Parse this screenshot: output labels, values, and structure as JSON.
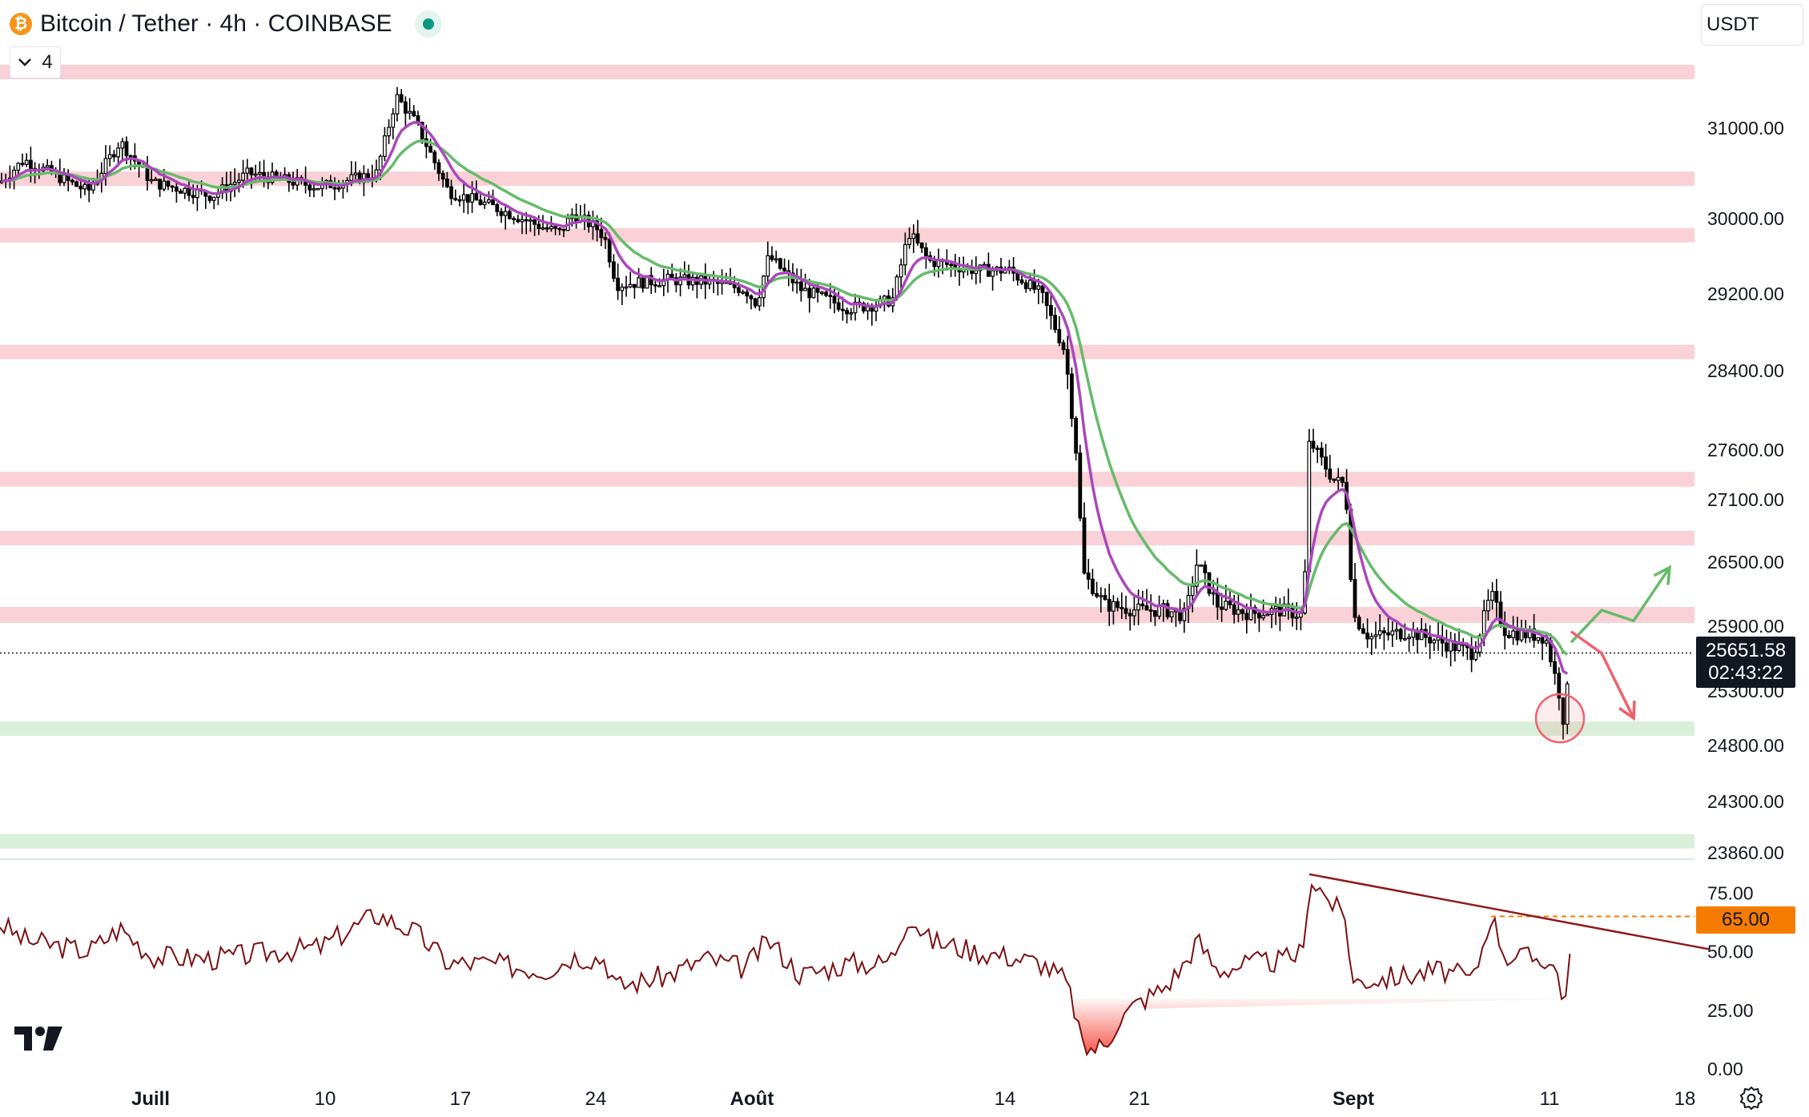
{
  "header": {
    "title": "Bitcoin / Tether · 4h · COINBASE",
    "logo_letter": "₿",
    "indicator_count": "4",
    "currency": "USDT"
  },
  "price_tag": {
    "price": "25651.58",
    "countdown": "02:43:22"
  },
  "rsi_tag": {
    "value": "65.00"
  },
  "colors": {
    "candle": "#000000",
    "ema_fast": "#ab47bc",
    "ema_slow": "#66bb6a",
    "resistance_zone": "#f9d1d6",
    "support_zone": "#d9efd9",
    "rsi_line": "#7b1113",
    "rsi_trendline": "#8e1b1b",
    "rsi_oversold_fill": "#f44336",
    "arrow_up": "#66bb6a",
    "arrow_down": "#f0606c",
    "rsi_level_line": "#f57c00"
  },
  "chart_data": {
    "type": "candlestick",
    "title": "Bitcoin / Tether · 4h · COINBASE",
    "timeframe": "4h",
    "x_tick_labels": [
      "Juill",
      "10",
      "17",
      "24",
      "Août",
      "14",
      "21",
      "Sept",
      "11",
      "18"
    ],
    "y_tick_labels": [
      "31000.00",
      "30000.00",
      "29200.00",
      "28400.00",
      "27600.00",
      "27100.00",
      "26500.00",
      "25900.00",
      "25300.00",
      "24800.00",
      "24300.00",
      "23860.00"
    ],
    "rsi_tick_labels": [
      "75.00",
      "50.00",
      "25.00",
      "0.00"
    ],
    "last_price": 25651.58,
    "countdown": "02:43:22",
    "price_path": [
      [
        "Jul 1",
        30400
      ],
      [
        "Jul 3",
        30650
      ],
      [
        "Jul 5",
        30300
      ],
      [
        "Jul 6",
        30850
      ],
      [
        "Jul 8",
        30400
      ],
      [
        "Jul 10",
        30250
      ],
      [
        "Jul 11",
        30500
      ],
      [
        "Jul 12",
        30350
      ],
      [
        "Jul 13",
        30500
      ],
      [
        "Jul 13b",
        31350
      ],
      [
        "Jul 14",
        31050
      ],
      [
        "Jul 15",
        30300
      ],
      [
        "Jul 17",
        30150
      ],
      [
        "Jul 19",
        29900
      ],
      [
        "Jul 21",
        29850
      ],
      [
        "Jul 22",
        30050
      ],
      [
        "Jul 23",
        29900
      ],
      [
        "Jul 24",
        29800
      ],
      [
        "Jul 25",
        29300
      ],
      [
        "Jul 27",
        29350
      ],
      [
        "Jul 29",
        29330
      ],
      [
        "Jul 31",
        29250
      ],
      [
        "Aug 1",
        29100
      ],
      [
        "Aug 2",
        29600
      ],
      [
        "Aug 3",
        29250
      ],
      [
        "Aug 5",
        29050
      ],
      [
        "Aug 7",
        29100
      ],
      [
        "Aug 8",
        29150
      ],
      [
        "Aug 9",
        29850
      ],
      [
        "Aug 10",
        29550
      ],
      [
        "Aug 12",
        29450
      ],
      [
        "Aug 14",
        29450
      ],
      [
        "Aug 15",
        29200
      ],
      [
        "Aug 16",
        28600
      ],
      [
        "Aug 17",
        27500
      ],
      [
        "Aug 17b",
        26400
      ],
      [
        "Aug 18",
        26100
      ],
      [
        "Aug 20",
        26050
      ],
      [
        "Aug 21",
        26050
      ],
      [
        "Aug 22",
        26000
      ],
      [
        "Aug 23",
        26500
      ],
      [
        "Aug 24",
        26100
      ],
      [
        "Aug 26",
        26020
      ],
      [
        "Aug 28",
        26050
      ],
      [
        "Aug 29",
        26000
      ],
      [
        "Aug 29b",
        27700
      ],
      [
        "Aug 30",
        27300
      ],
      [
        "Aug 31",
        27250
      ],
      [
        "Sep 1",
        26000
      ],
      [
        "Sep 2",
        25800
      ],
      [
        "Sep 4",
        25850
      ],
      [
        "Sep 6",
        25750
      ],
      [
        "Sep 7",
        25650
      ],
      [
        "Sep 8",
        26200
      ],
      [
        "Sep 9",
        25850
      ],
      [
        "Sep 10",
        25800
      ],
      [
        "Sep 11",
        25250
      ],
      [
        "Sep 11b",
        25000
      ],
      [
        "Sep 12",
        25651.58
      ]
    ],
    "resistance_zones": [
      [
        31580,
        31700
      ],
      [
        30400,
        30520
      ],
      [
        29820,
        29900
      ],
      [
        28550,
        28670
      ],
      [
        27230,
        27380
      ],
      [
        26700,
        26800
      ],
      [
        25930,
        26080
      ]
    ],
    "support_zones": [
      [
        24890,
        25020
      ],
      [
        23900,
        24020
      ]
    ],
    "rsi_path": [
      [
        "Jul 1",
        62
      ],
      [
        "Jul 3",
        55
      ],
      [
        "Jul 5",
        50
      ],
      [
        "Jul 6",
        60
      ],
      [
        "Jul 8",
        48
      ],
      [
        "Jul 10",
        47
      ],
      [
        "Jul 12",
        52
      ],
      [
        "Jul 13",
        66
      ],
      [
        "Jul 14",
        58
      ],
      [
        "Jul 15",
        45
      ],
      [
        "Jul 17",
        45
      ],
      [
        "Jul 19",
        42
      ],
      [
        "Jul 21",
        45
      ],
      [
        "Jul 22",
        48
      ],
      [
        "Jul 24",
        47
      ],
      [
        "Jul 25",
        35
      ],
      [
        "Jul 27",
        40
      ],
      [
        "Jul 29",
        47
      ],
      [
        "Jul 31",
        43
      ],
      [
        "Aug 2",
        55
      ],
      [
        "Aug 3",
        40
      ],
      [
        "Aug 5",
        45
      ],
      [
        "Aug 7",
        45
      ],
      [
        "Aug 8",
        48
      ],
      [
        "Aug 9",
        66
      ],
      [
        "Aug 10",
        55
      ],
      [
        "Aug 12",
        50
      ],
      [
        "Aug 14",
        48
      ],
      [
        "Aug 15",
        45
      ],
      [
        "Aug 16",
        38
      ],
      [
        "Aug 17",
        22
      ],
      [
        "Aug 17b",
        8
      ],
      [
        "Aug 18",
        10
      ],
      [
        "Aug 19",
        20
      ],
      [
        "Aug 20",
        28
      ],
      [
        "Aug 21",
        35
      ],
      [
        "Aug 22",
        45
      ],
      [
        "Aug 23",
        55
      ],
      [
        "Aug 24",
        42
      ],
      [
        "Aug 26",
        45
      ],
      [
        "Aug 28",
        46
      ],
      [
        "Aug 29",
        50
      ],
      [
        "Aug 29b",
        82
      ],
      [
        "Aug 30",
        70
      ],
      [
        "Aug 31",
        64
      ],
      [
        "Sep 1",
        37
      ],
      [
        "Sep 2",
        38
      ],
      [
        "Sep 4",
        40
      ],
      [
        "Sep 6",
        42
      ],
      [
        "Sep 7",
        38
      ],
      [
        "Sep 8",
        66
      ],
      [
        "Sep 9",
        48
      ],
      [
        "Sep 10",
        47
      ],
      [
        "Sep 11",
        40
      ],
      [
        "Sep 11b",
        24
      ],
      [
        "Sep 12",
        50
      ]
    ],
    "rsi_level": 65,
    "rsi_trendline": [
      [
        "Aug 29b",
        83
      ],
      [
        "Sep 15",
        51
      ]
    ],
    "projections": {
      "bullish": [
        [
          "Sep 12",
          25750
        ],
        [
          "Sep 13",
          26050
        ],
        [
          "Sep 14",
          25950
        ],
        [
          "Sep 15",
          26450
        ]
      ],
      "bearish": [
        [
          "Sep 12",
          25850
        ],
        [
          "Sep 13",
          25650
        ],
        [
          "Sep 14",
          25050
        ]
      ]
    },
    "highlight_low": {
      "date": "Sep 11",
      "price": 25050
    },
    "grid": false
  }
}
